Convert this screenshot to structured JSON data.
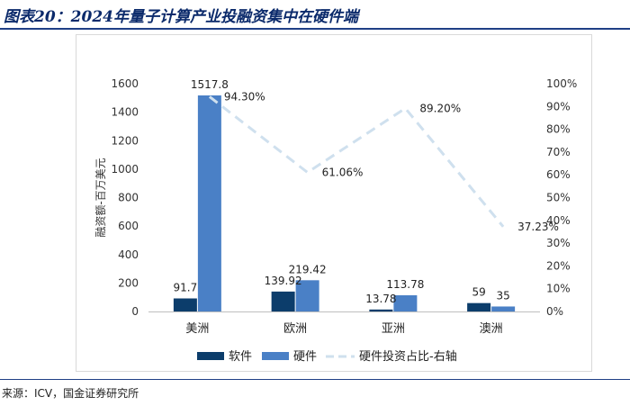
{
  "title": "图表20：2024年量子计算产业投融资集中在硬件端",
  "source": "来源：ICV，国金证券研究所",
  "colors": {
    "software": "#0c3d6b",
    "hardware": "#4a80c6",
    "line": "#cfe0ee",
    "axis_text": "#333333",
    "title": "#0b2a6b"
  },
  "chart_data": {
    "type": "bar",
    "categories": [
      "美洲",
      "欧洲",
      "亚洲",
      "澳洲"
    ],
    "series": [
      {
        "name": "软件",
        "type": "bar",
        "axis": "left",
        "values": [
          91.7,
          139.92,
          13.78,
          59
        ],
        "labels": [
          "91.7",
          "139.92",
          "13.78",
          "59"
        ]
      },
      {
        "name": "硬件",
        "type": "bar",
        "axis": "left",
        "values": [
          1517.8,
          219.42,
          113.78,
          35
        ],
        "labels": [
          "1517.8",
          "219.42",
          "113.78",
          "35"
        ]
      },
      {
        "name": "硬件投资占比-右轴",
        "type": "line",
        "style": "dashed",
        "axis": "right",
        "values": [
          94.3,
          61.06,
          89.2,
          37.23
        ],
        "labels": [
          "94.30%",
          "61.06%",
          "89.20%",
          "37.23%"
        ]
      }
    ],
    "ylabel": "融资额-百万美元",
    "ylim": [
      0,
      1600
    ],
    "yticks": [
      "0",
      "200",
      "400",
      "600",
      "800",
      "1000",
      "1200",
      "1400",
      "1600"
    ],
    "y2lim": [
      0,
      100
    ],
    "y2ticks": [
      "0%",
      "10%",
      "20%",
      "30%",
      "40%",
      "50%",
      "60%",
      "70%",
      "80%",
      "90%",
      "100%"
    ],
    "grid": false,
    "legend_position": "bottom"
  }
}
